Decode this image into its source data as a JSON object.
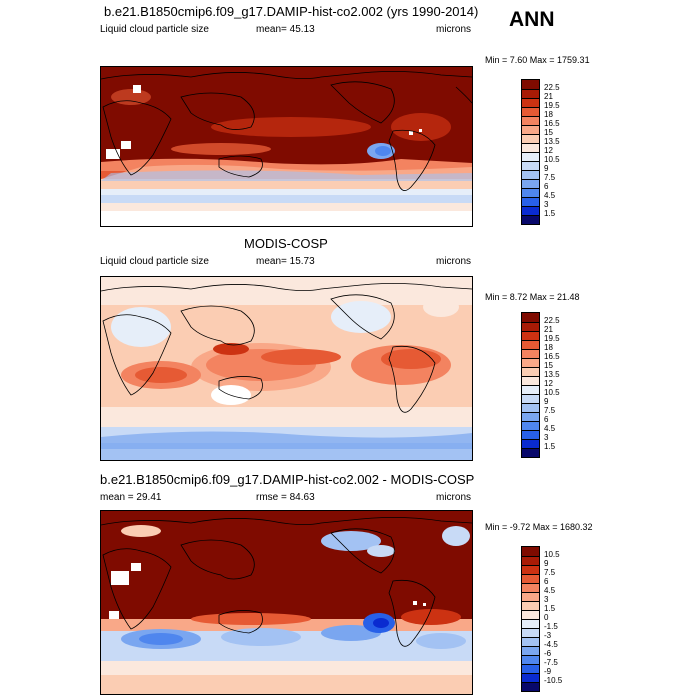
{
  "season": "ANN",
  "panels": [
    {
      "title": "b.e21.B1850cmip6.f09_g17.DAMIP-hist-co2.002 (yrs 1990-2014)",
      "left_label": "Liquid cloud particle size",
      "mid_label": "mean=  45.13",
      "units": "microns",
      "minmax": "Min =   7.60 Max = 1759.31",
      "colorbar_levels": [
        "22.5",
        "21",
        "19.5",
        "18",
        "16.5",
        "15",
        "13.5",
        "12",
        "10.5",
        "9",
        "7.5",
        "6",
        "4.5",
        "3",
        "1.5"
      ]
    },
    {
      "title": "MODIS-COSP",
      "left_label": "Liquid cloud particle size",
      "mid_label": "mean=  15.73",
      "units": "microns",
      "minmax": "Min =   8.72 Max =  21.48",
      "colorbar_levels": [
        "22.5",
        "21",
        "19.5",
        "18",
        "16.5",
        "15",
        "13.5",
        "12",
        "10.5",
        "9",
        "7.5",
        "6",
        "4.5",
        "3",
        "1.5"
      ]
    },
    {
      "title": "b.e21.B1850cmip6.f09_g17.DAMIP-hist-co2.002 - MODIS-COSP",
      "left_label": "mean =  29.41",
      "mid_label": "rmse =  84.63",
      "units": "microns",
      "minmax": "Min =  -9.72 Max = 1680.32",
      "colorbar_levels": [
        "10.5",
        "9",
        "7.5",
        "6",
        "4.5",
        "3",
        "1.5",
        "0",
        "-1.5",
        "-3",
        "-4.5",
        "-6",
        "-7.5",
        "-9",
        "-10.5"
      ]
    }
  ],
  "colors": {
    "warm_scale": [
      "#08086b",
      "#0a2bd0",
      "#2860e8",
      "#4f86ee",
      "#7aa6f0",
      "#a3c2f3",
      "#c8daf6",
      "#e6eef9",
      "#fbe8dd",
      "#fbcdb3",
      "#f9a888",
      "#f38360",
      "#e65a34",
      "#cc3212",
      "#a81b06",
      "#7f0b00"
    ],
    "diff_scale": [
      "#08086b",
      "#0a2bd0",
      "#2860e8",
      "#4f86ee",
      "#7aa6f0",
      "#a3c2f3",
      "#c8daf6",
      "#e6eef9",
      "#fbe8dd",
      "#fbcdb3",
      "#f9a888",
      "#f38360",
      "#e65a34",
      "#cc3212",
      "#a81b06",
      "#7f0b00"
    ]
  }
}
